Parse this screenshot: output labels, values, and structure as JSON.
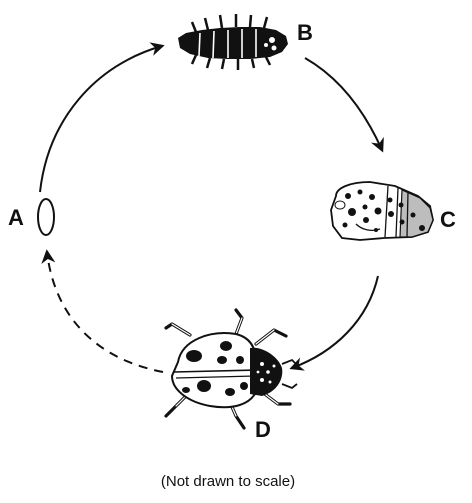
{
  "diagram": {
    "stages": [
      {
        "label": "A",
        "name": "egg"
      },
      {
        "label": "B",
        "name": "larva"
      },
      {
        "label": "C",
        "name": "pupa"
      },
      {
        "label": "D",
        "name": "adult-ladybug"
      }
    ],
    "caption": "(Not drawn to scale)"
  }
}
